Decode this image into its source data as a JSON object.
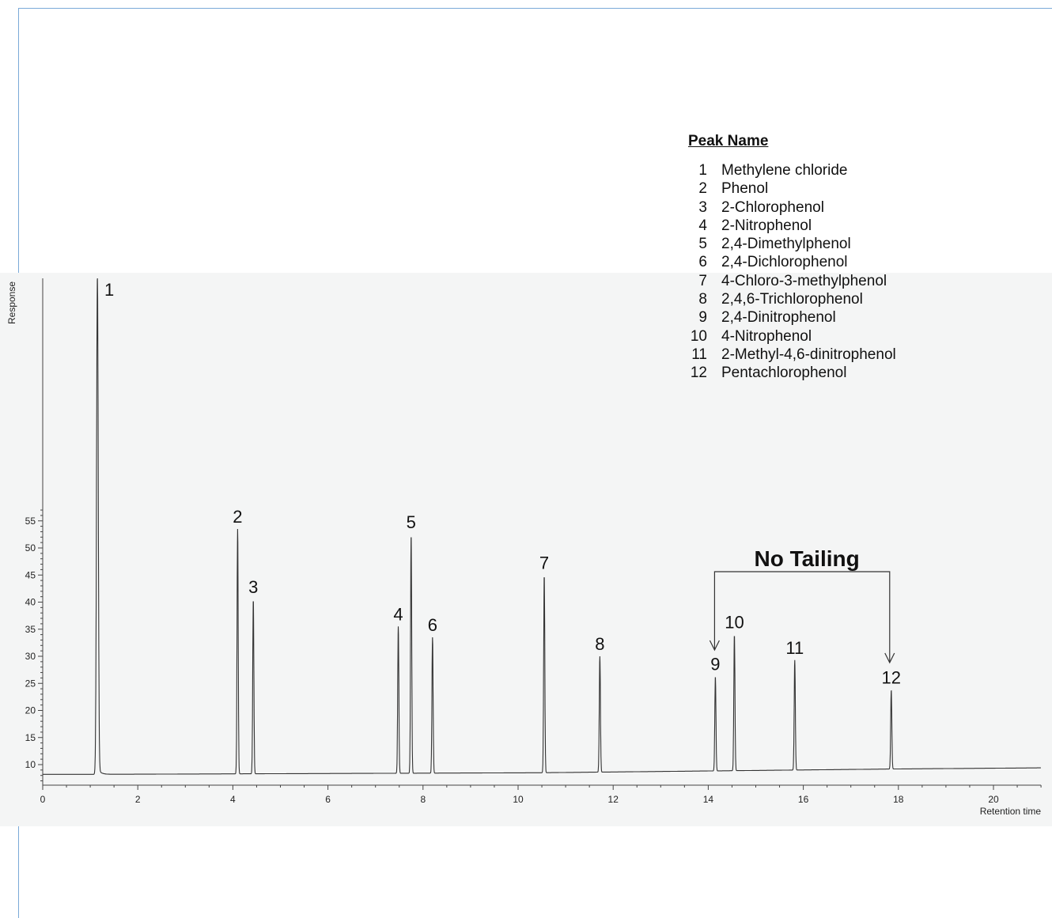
{
  "legend": {
    "title": "Peak Name",
    "entries": [
      {
        "num": "1",
        "name": "Methylene chloride"
      },
      {
        "num": "2",
        "name": "Phenol"
      },
      {
        "num": "3",
        "name": "2-Chlorophenol"
      },
      {
        "num": "4",
        "name": "2-Nitrophenol"
      },
      {
        "num": "5",
        "name": "2,4-Dimethylphenol"
      },
      {
        "num": "6",
        "name": "2,4-Dichlorophenol"
      },
      {
        "num": "7",
        "name": "4-Chloro-3-methylphenol"
      },
      {
        "num": "8",
        "name": "2,4,6-Trichlorophenol"
      },
      {
        "num": "9",
        "name": "2,4-Dinitrophenol"
      },
      {
        "num": "10",
        "name": "4-Nitrophenol"
      },
      {
        "num": "11",
        "name": "2-Methyl-4,6-dinitrophenol"
      },
      {
        "num": "12",
        "name": "Pentachlorophenol"
      }
    ]
  },
  "chart_data": {
    "type": "line",
    "title": "",
    "xlabel": "Retention time",
    "ylabel": "Response",
    "xlim": [
      0,
      21
    ],
    "ylim": [
      6,
      100
    ],
    "x_ticks": [
      0,
      2,
      4,
      6,
      8,
      10,
      12,
      14,
      16,
      18,
      20
    ],
    "y_ticks": [
      10,
      15,
      20,
      25,
      30,
      35,
      40,
      45,
      50,
      55
    ],
    "baseline": [
      [
        0,
        8.2
      ],
      [
        1.1,
        8.2
      ],
      [
        10.5,
        8.5
      ],
      [
        18,
        9.2
      ],
      [
        21,
        9.4
      ]
    ],
    "peaks": [
      {
        "label": "1",
        "x": 1.15,
        "height": 100
      },
      {
        "label": "2",
        "x": 4.1,
        "height": 53.5
      },
      {
        "label": "3",
        "x": 4.43,
        "height": 40.5
      },
      {
        "label": "4",
        "x": 7.48,
        "height": 35.5
      },
      {
        "label": "5",
        "x": 7.75,
        "height": 52.5
      },
      {
        "label": "6",
        "x": 8.2,
        "height": 33.5
      },
      {
        "label": "7",
        "x": 10.55,
        "height": 45
      },
      {
        "label": "8",
        "x": 11.72,
        "height": 30
      },
      {
        "label": "9",
        "x": 14.15,
        "height": 26.3
      },
      {
        "label": "10",
        "x": 14.55,
        "height": 34
      },
      {
        "label": "11",
        "x": 15.82,
        "height": 29.3
      },
      {
        "label": "12",
        "x": 17.85,
        "height": 23.8
      }
    ],
    "annotation": {
      "text": "No Tailing",
      "from_peak": "9",
      "to_peak": "12"
    }
  }
}
